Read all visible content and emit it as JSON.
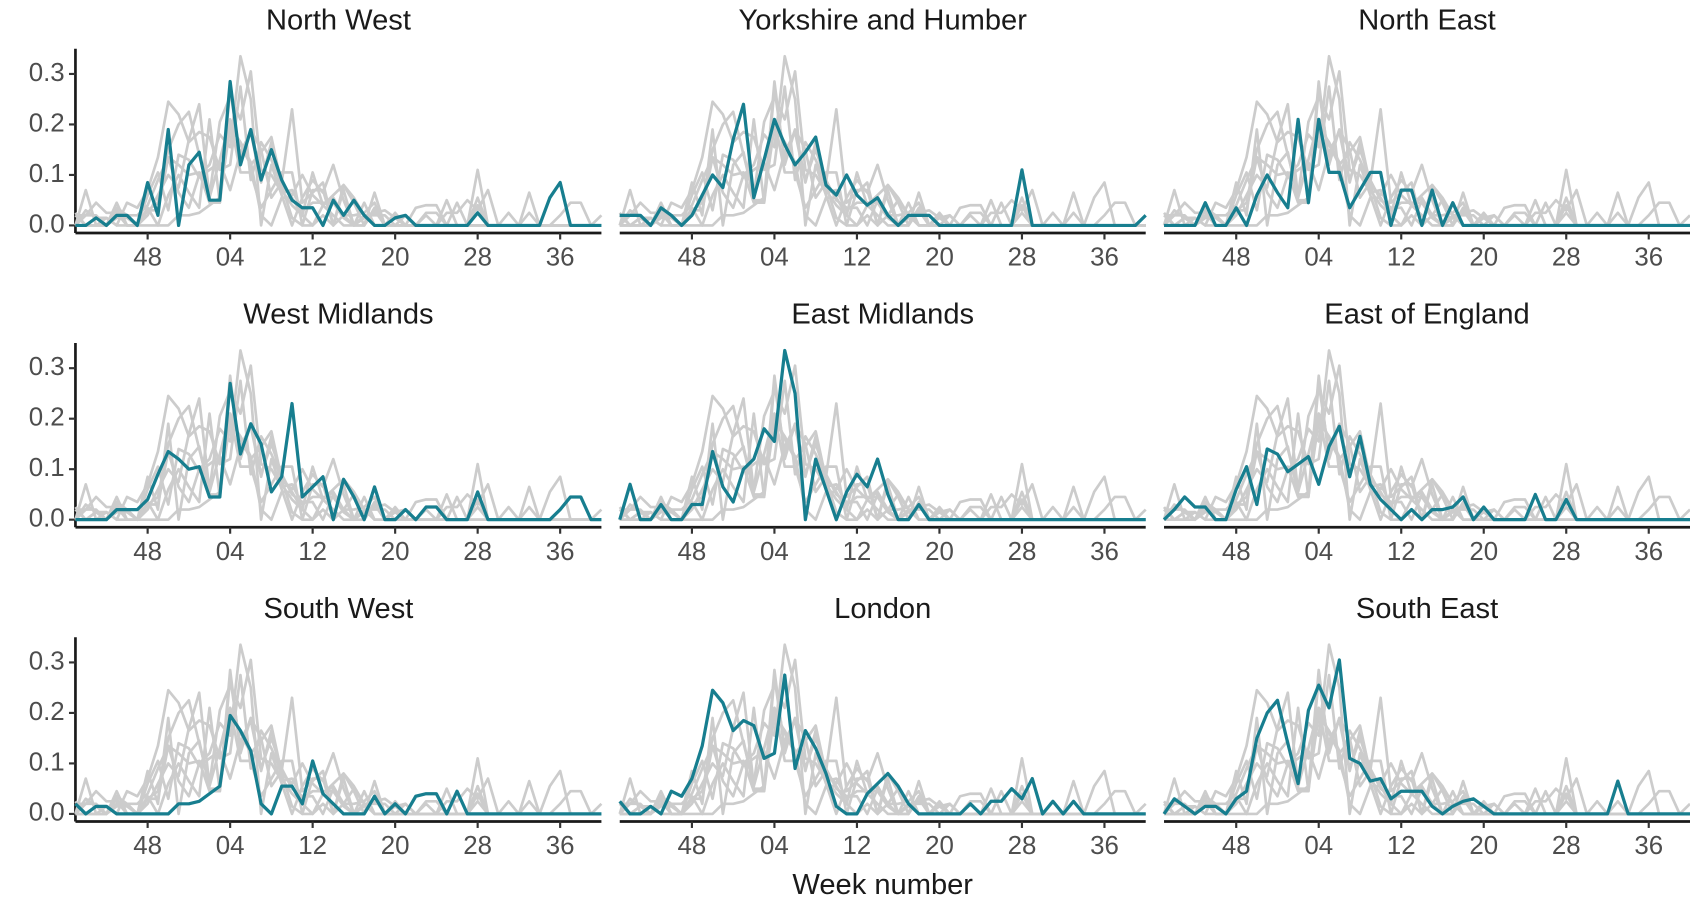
{
  "chart_data": {
    "type": "line",
    "xlabel": "Week number",
    "categories": [
      null,
      null,
      null,
      null,
      null,
      null,
      null,
      "48",
      null,
      null,
      null,
      null,
      null,
      null,
      null,
      "04",
      null,
      null,
      null,
      null,
      null,
      null,
      null,
      "12",
      null,
      null,
      null,
      null,
      null,
      null,
      null,
      "20",
      null,
      null,
      null,
      null,
      null,
      null,
      null,
      "28",
      null,
      null,
      null,
      null,
      null,
      null,
      null,
      "36",
      null,
      null,
      null,
      null
    ],
    "ylim": [
      -0.015,
      0.35
    ],
    "yticks": [
      {
        "value": 0,
        "label": "0.0"
      },
      {
        "value": 0.1,
        "label": "0.1"
      },
      {
        "value": 0.2,
        "label": "0.2"
      },
      {
        "value": 0.3,
        "label": "0.3"
      }
    ],
    "highlight_color": "#177e8f",
    "context_color": "#cccccc",
    "series": [
      {
        "name": "North West",
        "values": [
          0,
          0,
          0.015,
          0,
          0.02,
          0.02,
          0,
          0.085,
          0.02,
          0.19,
          0,
          0.12,
          0.145,
          0.05,
          0.05,
          0.285,
          0.12,
          0.19,
          0.09,
          0.15,
          0.09,
          0.05,
          0.035,
          0.035,
          0,
          0.05,
          0.02,
          0.05,
          0.02,
          0,
          0,
          0.015,
          0.02,
          0,
          0,
          0,
          0,
          0,
          0,
          0.025,
          0,
          0,
          0,
          0,
          0,
          0,
          0.055,
          0.085,
          0,
          0,
          0,
          0
        ]
      },
      {
        "name": "Yorkshire and Humber",
        "values": [
          0.02,
          0.02,
          0.02,
          0,
          0.035,
          0.02,
          0,
          0.02,
          0.06,
          0.1,
          0.075,
          0.17,
          0.24,
          0.055,
          0.13,
          0.21,
          0.16,
          0.12,
          0.145,
          0.175,
          0.08,
          0.06,
          0.1,
          0.06,
          0.04,
          0.055,
          0.02,
          0,
          0.02,
          0.02,
          0.02,
          0,
          0,
          0,
          0,
          0,
          0,
          0,
          0,
          0.11,
          0,
          0,
          0,
          0,
          0,
          0,
          0,
          0,
          0,
          0,
          0,
          0.02
        ]
      },
      {
        "name": "North East",
        "values": [
          0,
          0,
          0,
          0,
          0.045,
          0,
          0,
          0.035,
          0,
          0.06,
          0.1,
          0.065,
          0.035,
          0.21,
          0.045,
          0.21,
          0.105,
          0.105,
          0.035,
          0.07,
          0.105,
          0.105,
          0,
          0.07,
          0.07,
          0,
          0.07,
          0,
          0.045,
          0,
          0,
          0,
          0,
          0,
          0,
          0,
          0,
          0,
          0,
          0,
          0,
          0,
          0,
          0,
          0,
          0,
          0,
          0,
          0,
          0,
          0,
          0
        ]
      },
      {
        "name": "West Midlands",
        "values": [
          0,
          0,
          0,
          0,
          0.02,
          0.02,
          0.02,
          0.04,
          0.09,
          0.135,
          0.12,
          0.1,
          0.105,
          0.045,
          0.045,
          0.27,
          0.13,
          0.19,
          0.15,
          0.055,
          0.085,
          0.23,
          0.045,
          0.065,
          0.085,
          0,
          0.08,
          0.045,
          0,
          0.065,
          0,
          0,
          0.02,
          0,
          0.025,
          0.025,
          0,
          0,
          0,
          0.055,
          0,
          0,
          0,
          0,
          0,
          0,
          0,
          0.02,
          0.045,
          0.045,
          0,
          0
        ]
      },
      {
        "name": "East Midlands",
        "values": [
          0,
          0.07,
          0,
          0,
          0.03,
          0,
          0,
          0.03,
          0.03,
          0.135,
          0.065,
          0.035,
          0.1,
          0.12,
          0.18,
          0.155,
          0.335,
          0.25,
          0,
          0.12,
          0.06,
          0,
          0.055,
          0.09,
          0.065,
          0.12,
          0.05,
          0,
          0,
          0.03,
          0,
          0,
          0,
          0,
          0,
          0,
          0,
          0,
          0,
          0,
          0,
          0,
          0,
          0,
          0,
          0,
          0,
          0,
          0,
          0,
          0,
          0
        ]
      },
      {
        "name": "East of England",
        "values": [
          0,
          0.02,
          0.045,
          0.025,
          0.025,
          0,
          0,
          0.06,
          0.105,
          0.03,
          0.14,
          0.13,
          0.095,
          0.11,
          0.125,
          0.07,
          0.145,
          0.185,
          0.085,
          0.165,
          0.07,
          0.04,
          0.02,
          0,
          0.02,
          0,
          0.02,
          0.02,
          0.025,
          0.045,
          0,
          0.025,
          0,
          0,
          0,
          0,
          0.05,
          0,
          0,
          0.04,
          0,
          0,
          0,
          0,
          0,
          0,
          0,
          0,
          0,
          0,
          0,
          0
        ]
      },
      {
        "name": "South West",
        "values": [
          0.02,
          0,
          0.015,
          0.015,
          0,
          0,
          0,
          0,
          0,
          0,
          0.02,
          0.02,
          0.025,
          0.04,
          0.055,
          0.195,
          0.165,
          0.125,
          0.02,
          0,
          0.055,
          0.055,
          0.02,
          0.105,
          0.04,
          0.02,
          0,
          0,
          0,
          0.035,
          0,
          0.02,
          0,
          0.035,
          0.04,
          0.04,
          0,
          0.045,
          0,
          0,
          0,
          0,
          0,
          0,
          0,
          0,
          0,
          0,
          0,
          0,
          0,
          0
        ]
      },
      {
        "name": "London",
        "values": [
          0.025,
          0,
          0,
          0.015,
          0,
          0.045,
          0.035,
          0.07,
          0.135,
          0.245,
          0.22,
          0.165,
          0.185,
          0.175,
          0.11,
          0.12,
          0.275,
          0.09,
          0.165,
          0.13,
          0.08,
          0.015,
          0,
          0,
          0.04,
          0.06,
          0.08,
          0.055,
          0.02,
          0,
          0,
          0,
          0,
          0,
          0.02,
          0,
          0.025,
          0.025,
          0.05,
          0.03,
          0.07,
          0,
          0.025,
          0,
          0.025,
          0,
          0,
          0,
          0,
          0,
          0,
          0
        ]
      },
      {
        "name": "South East",
        "values": [
          0,
          0.03,
          0.015,
          0,
          0.015,
          0.015,
          0,
          0.03,
          0.045,
          0.15,
          0.2,
          0.225,
          0.14,
          0.06,
          0.205,
          0.255,
          0.21,
          0.305,
          0.11,
          0.1,
          0.065,
          0.07,
          0.03,
          0.045,
          0.045,
          0.045,
          0.015,
          0,
          0.015,
          0.025,
          0.03,
          0.015,
          0,
          0,
          0,
          0,
          0,
          0,
          0,
          0,
          0,
          0,
          0,
          0,
          0.065,
          0,
          0,
          0,
          0,
          0,
          0,
          0
        ]
      }
    ]
  }
}
